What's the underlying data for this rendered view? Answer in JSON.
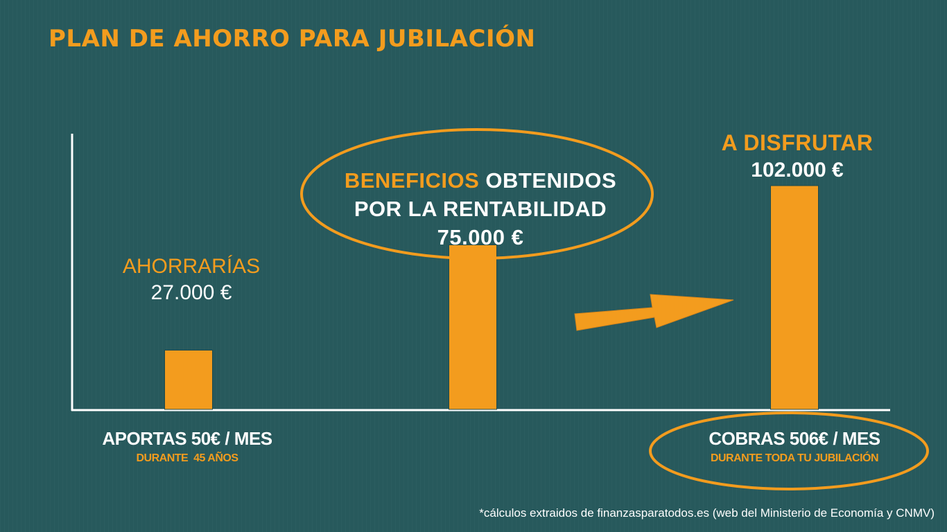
{
  "title": "PLAN DE AHORRO PARA JUBILACIÓN",
  "colors": {
    "background": "#27595c",
    "accent": "#f39c1e",
    "text": "#ffffff"
  },
  "chart_data": {
    "type": "bar",
    "categories": [
      "AHORRARÍAS",
      "BENEFICIOS OBTENIDOS POR LA RENTABILIDAD",
      "A DISFRUTAR"
    ],
    "values": [
      27000,
      75000,
      102000
    ],
    "value_labels": [
      "27.000 €",
      "75.000 €",
      "102.000 €"
    ],
    "ylim": [
      0,
      120000
    ],
    "grid": false,
    "legend": "none"
  },
  "labels": {
    "bar1_title": "AHORRARÍAS",
    "bar1_value": "27.000 €",
    "bar2_title_accent": "BENEFICIOS",
    "bar2_title_rest": " OBTENIDOS",
    "bar2_line2": "POR LA RENTABILIDAD",
    "bar2_value": "75.000 €",
    "bar3_title": "A DISFRUTAR",
    "bar3_value": "102.000 €"
  },
  "bottom": {
    "left_main": "APORTAS 50€ / MES",
    "left_sub": "DURANTE  45 AÑOS",
    "right_main": "COBRAS 506€ / MES",
    "right_sub": "DURANTE TODA TU JUBILACIÓN"
  },
  "footnote": "*cálculos extraidos de finanzasparatodos.es (web del Ministerio de Economía y CNMV)"
}
